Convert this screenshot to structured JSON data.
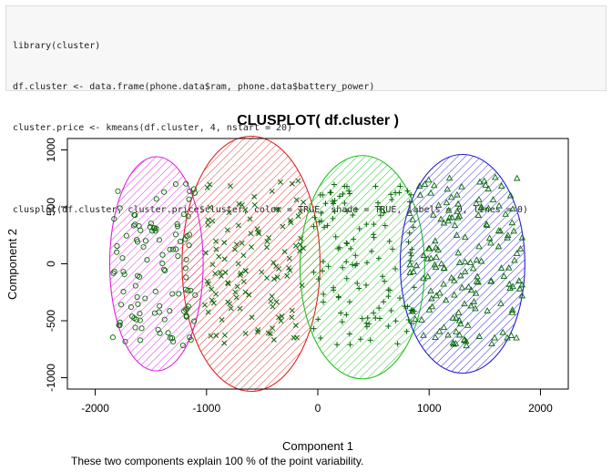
{
  "code": {
    "lines": [
      "library(cluster)",
      "df.cluster <- data.frame(phone.data$ram, phone.data$battery_power)",
      "cluster.price <- kmeans(df.cluster, 4, nstart = 20)",
      "",
      "clusplot(df.cluster, cluster.price$cluster, color = TRUE, shade = TRUE, labels = 0, lines = 0)"
    ]
  },
  "colors": {
    "point": "#0a6a0a",
    "cluster_1": "#e020e0",
    "cluster_2": "#e02020",
    "cluster_3": "#20c020",
    "cluster_4": "#2020d0"
  },
  "chart_data": {
    "type": "scatter",
    "title": "CLUSPLOT( df.cluster )",
    "xlabel": "Component 1",
    "ylabel": "Component 2",
    "footnote": "These two components explain 100 % of the point variability.",
    "xlim": [
      -2250,
      2250
    ],
    "ylim": [
      -1100,
      1100
    ],
    "xticks": [
      "-2000",
      "-1000",
      "0",
      "1000",
      "2000"
    ],
    "yticks": [
      "-1000",
      "-500",
      "0",
      "500",
      "1000"
    ],
    "xtick_values": [
      -2000,
      -1000,
      0,
      1000,
      2000
    ],
    "ytick_values": [
      -1000,
      -500,
      0,
      500,
      1000
    ],
    "clusters": [
      {
        "id": 1,
        "marker": "circle",
        "center": [
          -1450,
          0
        ],
        "radii": [
          420,
          940
        ],
        "x_range": [
          -1850,
          -1100
        ],
        "y_range": [
          -720,
          730
        ],
        "n": 110
      },
      {
        "id": 2,
        "marker": "x",
        "center": [
          -600,
          0
        ],
        "radii": [
          620,
          1120
        ],
        "x_range": [
          -1020,
          -120
        ],
        "y_range": [
          -700,
          740
        ],
        "n": 120
      },
      {
        "id": 3,
        "marker": "plus",
        "center": [
          400,
          -30
        ],
        "radii": [
          560,
          980
        ],
        "x_range": [
          -40,
          880
        ],
        "y_range": [
          -720,
          740
        ],
        "n": 130
      },
      {
        "id": 4,
        "marker": "triangle",
        "center": [
          1300,
          0
        ],
        "radii": [
          560,
          960
        ],
        "x_range": [
          820,
          1850
        ],
        "y_range": [
          -720,
          760
        ],
        "n": 160
      }
    ]
  }
}
